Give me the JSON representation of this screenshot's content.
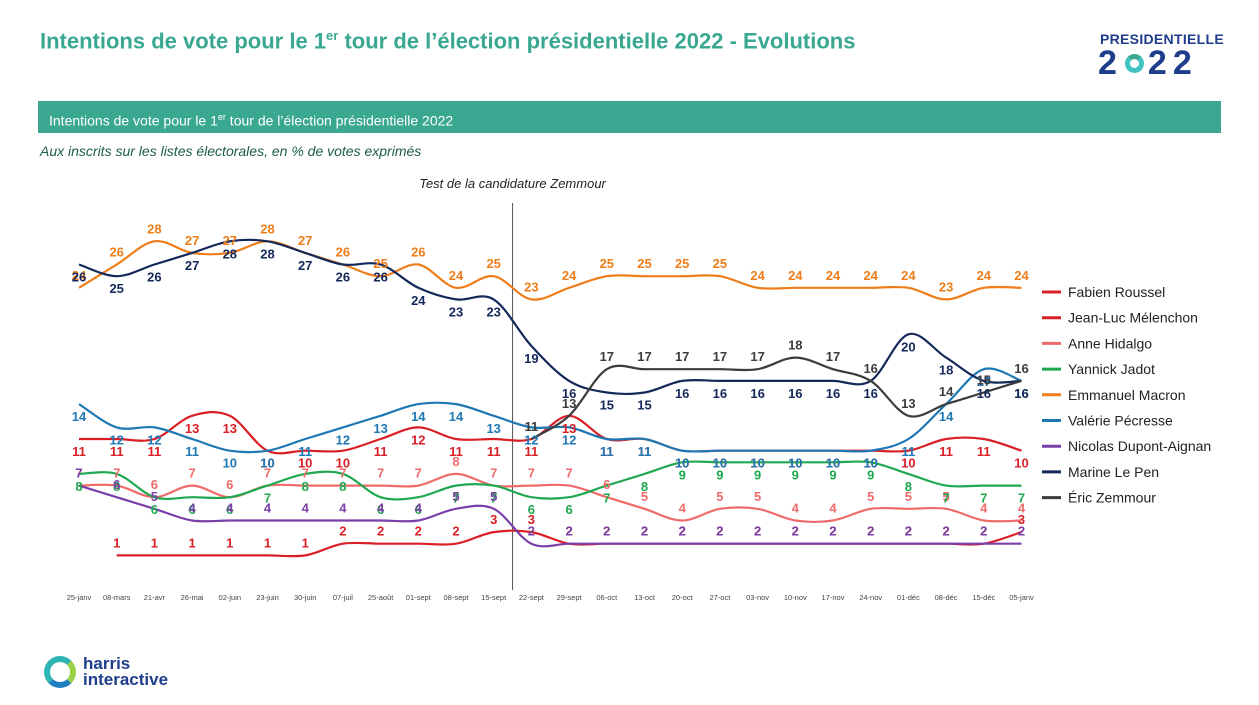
{
  "header": {
    "title_pre": "Intentions de vote pour le 1",
    "title_sup": "er",
    "title_post": " tour de l’élection présidentielle 2022 - Evolutions",
    "logo_top": "PRESIDENTIELLE",
    "logo_left": "2",
    "logo_right": "22"
  },
  "banner": {
    "pre": "Intentions de vote pour le 1",
    "sup": "er",
    "post": " tour de l’élection présidentielle 2022"
  },
  "subtitle": "Aux inscrits sur les listes électorales, en % de votes exprimés",
  "footer": {
    "brand_line1": "harris",
    "brand_line2": "interactive"
  },
  "chart_data": {
    "type": "line",
    "annotation": "Test de la candidature Zemmour",
    "ylim": [
      0,
      30
    ],
    "x": [
      "25-janv",
      "08-mars",
      "21-avr",
      "26-mai",
      "02-juin",
      "23-juin",
      "30-juin",
      "07-juil",
      "25-août",
      "01-sept",
      "08-sept",
      "15-sept",
      "22-sept",
      "29-sept",
      "06-oct",
      "13-oct",
      "20-oct",
      "27-oct",
      "03-nov",
      "10-nov",
      "17-nov",
      "24-nov",
      "01-déc",
      "08-déc",
      "15-déc",
      "05-janv"
    ],
    "series": [
      {
        "name": "Fabien Roussel",
        "color": "#d91f26",
        "values": [
          null,
          1,
          1,
          1,
          1,
          1,
          1,
          2,
          2,
          2,
          2,
          3,
          3,
          2,
          2,
          2,
          2,
          2,
          2,
          2,
          2,
          2,
          2,
          2,
          2,
          3
        ]
      },
      {
        "name": "Jean-Luc Mélenchon",
        "color": "#d91f26",
        "values": [
          11,
          11,
          11,
          13,
          13,
          10,
          10,
          10,
          11,
          12,
          11,
          11,
          11,
          13,
          11,
          11,
          10,
          10,
          10,
          10,
          10,
          10,
          10,
          11,
          11,
          10
        ]
      },
      {
        "name": "Anne Hidalgo",
        "color": "#ef6b6b",
        "values": [
          7,
          7,
          6,
          7,
          6,
          7,
          7,
          7,
          7,
          7,
          8,
          7,
          7,
          7,
          6,
          5,
          4,
          5,
          5,
          4,
          4,
          5,
          5,
          5,
          4,
          4
        ]
      },
      {
        "name": "Yannick Jadot",
        "color": "#1fa84f",
        "values": [
          8,
          8,
          6,
          6,
          6,
          7,
          8,
          8,
          6,
          6,
          7,
          7,
          6,
          6,
          7,
          8,
          9,
          9,
          9,
          9,
          9,
          9,
          8,
          7,
          7,
          7
        ]
      },
      {
        "name": "Emmanuel Macron",
        "color": "#ef7d1a",
        "values": [
          24,
          26,
          28,
          27,
          27,
          28,
          27,
          26,
          25,
          26,
          24,
          25,
          23,
          24,
          25,
          25,
          25,
          25,
          24,
          24,
          24,
          24,
          24,
          23,
          24,
          24
        ]
      },
      {
        "name": "Valérie Pécresse",
        "color": "#1e78b4",
        "values": [
          14,
          12,
          12,
          11,
          10,
          10,
          11,
          12,
          13,
          14,
          14,
          13,
          12,
          12,
          11,
          11,
          10,
          10,
          10,
          10,
          10,
          10,
          11,
          14,
          17,
          16
        ]
      },
      {
        "name": "Nicolas Dupont-Aignan",
        "color": "#7a3fa8",
        "values": [
          7,
          6,
          5,
          4,
          4,
          4,
          4,
          4,
          4,
          4,
          5,
          5,
          2,
          2,
          2,
          2,
          2,
          2,
          2,
          2,
          2,
          2,
          2,
          2,
          2,
          2
        ]
      },
      {
        "name": "Marine Le Pen",
        "color": "#14285a",
        "values": [
          26,
          25,
          26,
          27,
          28,
          28,
          27,
          26,
          26,
          24,
          23,
          23,
          19,
          16,
          15,
          15,
          16,
          16,
          16,
          16,
          16,
          16,
          20,
          18,
          16,
          16
        ]
      },
      {
        "name": "Éric Zemmour",
        "color": "#3c3c3c",
        "values": [
          null,
          null,
          null,
          null,
          null,
          null,
          null,
          null,
          null,
          null,
          null,
          null,
          11,
          13,
          17,
          17,
          17,
          17,
          17,
          18,
          17,
          16,
          13,
          14,
          15,
          16
        ]
      }
    ]
  }
}
